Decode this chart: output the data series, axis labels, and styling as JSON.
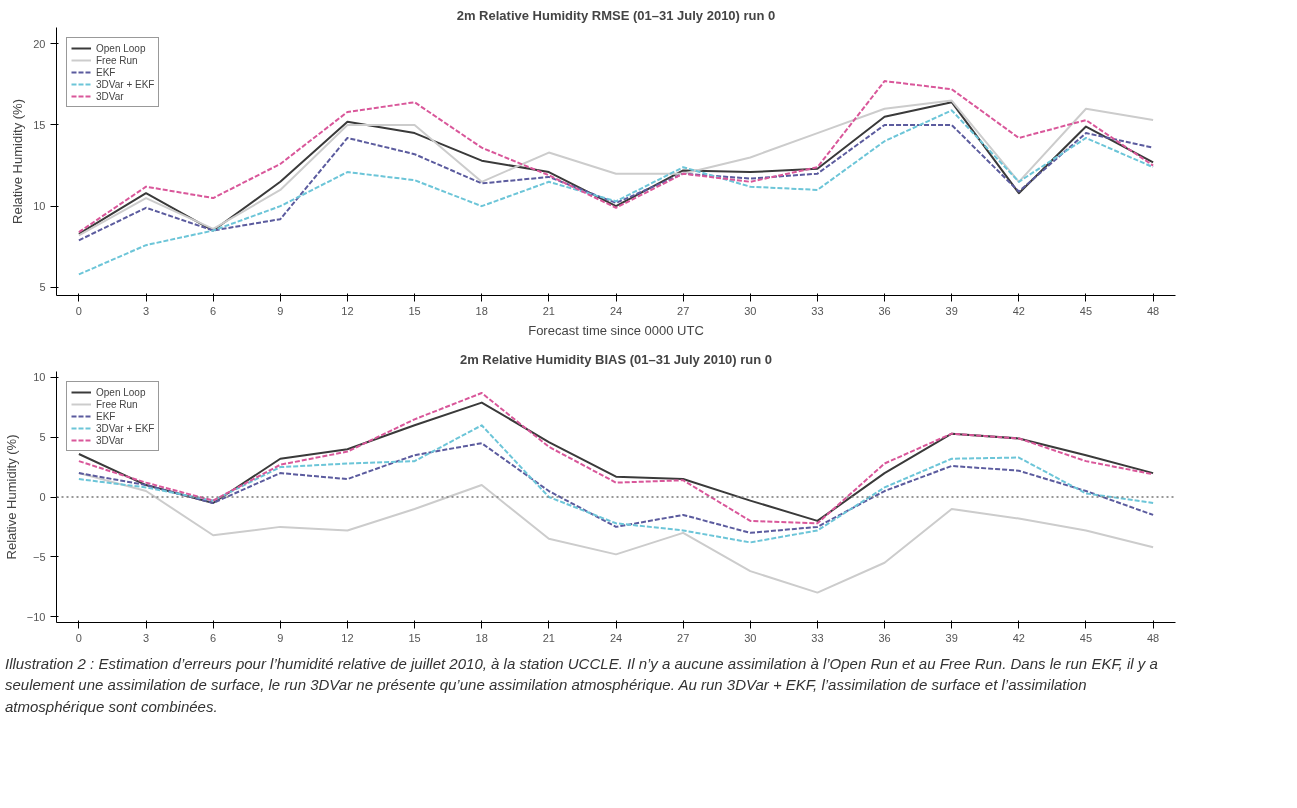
{
  "chart_data": [
    {
      "type": "line",
      "title": "2m Relative Humidity RMSE (01–31 July 2010) run 0",
      "xlabel": "Forecast time since 0000 UTC",
      "ylabel": "Relative Humidity (%)",
      "x": [
        0,
        3,
        6,
        9,
        12,
        15,
        18,
        21,
        24,
        27,
        30,
        33,
        36,
        39,
        42,
        45,
        48
      ],
      "xlim": [
        -1,
        49
      ],
      "xticks": [
        0,
        3,
        6,
        9,
        12,
        15,
        18,
        21,
        24,
        27,
        30,
        33,
        36,
        39,
        42,
        45,
        48
      ],
      "ylim": [
        4.5,
        21
      ],
      "yticks": [
        5,
        10,
        15,
        20
      ],
      "grid": false,
      "legend": "top left",
      "series": [
        {
          "name": "Open Loop",
          "color": "#3a3a3a",
          "line_style": "solid",
          "values": [
            8.3,
            10.8,
            8.5,
            11.5,
            15.2,
            14.5,
            12.8,
            12.1,
            10.0,
            12.2,
            12.1,
            12.3,
            15.5,
            16.4,
            10.8,
            14.9,
            12.7
          ]
        },
        {
          "name": "Free Run",
          "color": "#cccccc",
          "line_style": "solid",
          "values": [
            8.2,
            10.5,
            8.6,
            11.0,
            15.0,
            15.0,
            11.5,
            13.3,
            12.0,
            12.0,
            13.0,
            14.5,
            16.0,
            16.5,
            11.5,
            16.0,
            15.3
          ]
        },
        {
          "name": "EKF",
          "color": "#5b5b9e",
          "line_style": "dashed",
          "values": [
            7.9,
            9.9,
            8.5,
            9.2,
            14.2,
            13.2,
            11.4,
            11.8,
            10.2,
            12.0,
            11.7,
            12.0,
            15.0,
            15.0,
            10.9,
            14.5,
            13.6
          ]
        },
        {
          "name": "3DVar + EKF",
          "color": "#6cc5d8",
          "line_style": "dashed",
          "values": [
            5.8,
            7.6,
            8.5,
            10.0,
            12.1,
            11.6,
            10.0,
            11.5,
            10.3,
            12.4,
            11.2,
            11.0,
            14.0,
            15.9,
            11.5,
            14.2,
            12.4
          ]
        },
        {
          "name": "3DVar",
          "color": "#d9579a",
          "line_style": "dashed",
          "values": [
            8.4,
            11.2,
            10.5,
            12.6,
            15.8,
            16.4,
            13.6,
            11.9,
            9.9,
            12.0,
            11.5,
            12.4,
            17.7,
            17.2,
            14.2,
            15.3,
            12.5
          ]
        }
      ]
    },
    {
      "type": "line",
      "title": "2m Relative Humidity BIAS (01–31 July 2010) run 0",
      "ylabel": "Relative Humidity (%)",
      "x": [
        0,
        3,
        6,
        9,
        12,
        15,
        18,
        21,
        24,
        27,
        30,
        33,
        36,
        39,
        42,
        45,
        48
      ],
      "xlim": [
        -1,
        49
      ],
      "xticks": [
        0,
        3,
        6,
        9,
        12,
        15,
        18,
        21,
        24,
        27,
        30,
        33,
        36,
        39,
        42,
        45,
        48
      ],
      "ylim": [
        -10.5,
        10.5
      ],
      "yticks": [
        -10,
        -5,
        0,
        5,
        10
      ],
      "grid": false,
      "legend": "top left",
      "ref_lines": [
        {
          "axis": "y",
          "value": 0,
          "color": "#777777",
          "line_style": "dotted"
        }
      ],
      "annotations": [
        "Illustration 2 : Estimation d’erreurs pour l’humidité relative de juillet 2010, à la station UCCLE. Il n’y a aucune assimilation à l’Open Run et au Free Run. Dans le run EKF, il y a seulement une assimilation de surface, le run 3DVar ne présente qu’une assimilation atmosphérique. Au run 3DVar + EKF, l’assimilation de surface et l’assimilation atmosphérique sont combinées."
      ],
      "series": [
        {
          "name": "Open Loop",
          "color": "#3a3a3a",
          "line_style": "solid",
          "values": [
            3.6,
            1.0,
            -0.5,
            3.2,
            4.0,
            6.0,
            7.9,
            4.6,
            1.7,
            1.5,
            -0.3,
            -2.0,
            2.0,
            5.3,
            4.9,
            3.5,
            2.0
          ]
        },
        {
          "name": "Free Run",
          "color": "#cccccc",
          "line_style": "solid",
          "values": [
            2.0,
            0.5,
            -3.2,
            -2.5,
            -2.8,
            -1.0,
            1.0,
            -3.5,
            -4.8,
            -3.0,
            -6.2,
            -8.0,
            -5.5,
            -1.0,
            -1.8,
            -2.8,
            -4.2
          ]
        },
        {
          "name": "EKF",
          "color": "#5b5b9e",
          "line_style": "dashed",
          "values": [
            2.0,
            1.0,
            -0.5,
            2.0,
            1.5,
            3.5,
            4.5,
            0.5,
            -2.5,
            -1.5,
            -3.0,
            -2.5,
            0.5,
            2.6,
            2.2,
            0.5,
            -1.5
          ]
        },
        {
          "name": "3DVar + EKF",
          "color": "#6cc5d8",
          "line_style": "dashed",
          "values": [
            1.5,
            0.8,
            -0.3,
            2.5,
            2.8,
            3.0,
            6.0,
            0.0,
            -2.2,
            -2.8,
            -3.8,
            -2.8,
            0.8,
            3.2,
            3.3,
            0.3,
            -0.5
          ]
        },
        {
          "name": "3DVar",
          "color": "#d9579a",
          "line_style": "dashed",
          "values": [
            3.0,
            1.2,
            -0.3,
            2.7,
            3.8,
            6.5,
            8.7,
            4.2,
            1.2,
            1.4,
            -2.0,
            -2.2,
            2.8,
            5.3,
            4.9,
            3.0,
            1.9
          ]
        }
      ]
    }
  ]
}
